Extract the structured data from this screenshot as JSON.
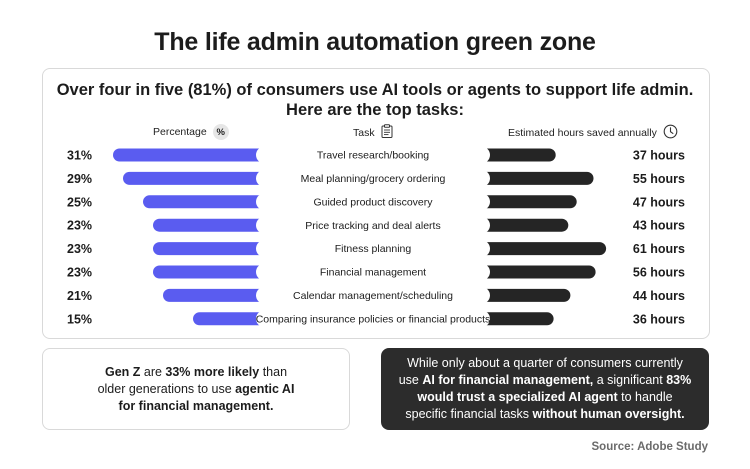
{
  "title": "The life admin automation green zone",
  "subtitle": "Over four in five (81%) of consumers use AI tools or agents to support life admin. Here are the top tasks:",
  "headers": {
    "percentage": "Percentage",
    "percentage_symbol": "%",
    "task": "Task",
    "hours": "Estimated hours saved annually"
  },
  "colors": {
    "percent_bar": "#5a5cf0",
    "hours_bar": "#252525",
    "task_pill": "#ffffff"
  },
  "chart_data": {
    "type": "bar",
    "categories": [
      "Travel research/booking",
      "Meal planning/grocery ordering",
      "Guided product discovery",
      "Price tracking and deal alerts",
      "Fitness planning",
      "Financial management",
      "Calendar management/scheduling",
      "Comparing insurance policies or financial products"
    ],
    "series": [
      {
        "name": "Percentage",
        "values": [
          31,
          29,
          25,
          23,
          23,
          23,
          21,
          15
        ],
        "labels": [
          "31%",
          "29%",
          "25%",
          "23%",
          "23%",
          "23%",
          "21%",
          "15%"
        ]
      },
      {
        "name": "Estimated hours saved annually",
        "values": [
          37,
          55,
          47,
          43,
          61,
          56,
          44,
          36
        ],
        "labels": [
          "37 hours",
          "55 hours",
          "47 hours",
          "43 hours",
          "61 hours",
          "56 hours",
          "44 hours",
          "36 hours"
        ]
      }
    ]
  },
  "note_left": {
    "parts": [
      {
        "text": "Gen Z",
        "bold": true
      },
      {
        "text": " are ",
        "bold": false
      },
      {
        "text": "33% more likely",
        "bold": true
      },
      {
        "text": " than older generations to use ",
        "bold": false
      },
      {
        "text": "agentic AI for financial management.",
        "bold": true
      }
    ]
  },
  "note_right": {
    "parts": [
      {
        "text": "While only about a quarter of consumers currently use ",
        "bold": false
      },
      {
        "text": "AI for financial management,",
        "bold": true
      },
      {
        "text": " a significant ",
        "bold": false
      },
      {
        "text": "83% would trust a specialized AI agent",
        "bold": true
      },
      {
        "text": " to handle specific financial tasks ",
        "bold": false
      },
      {
        "text": "without human oversight.",
        "bold": true
      }
    ]
  },
  "source": "Source: Adobe Study"
}
